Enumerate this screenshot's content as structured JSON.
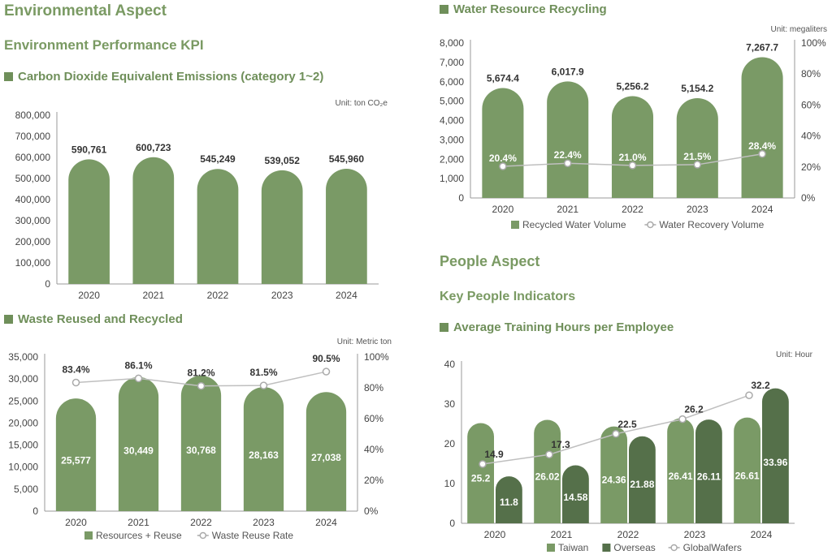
{
  "headings": {
    "env_aspect": "Environmental Aspect",
    "env_kpi": "Environment Performance KPI",
    "co2_title": "Carbon Dioxide Equivalent Emissions (category 1~2)",
    "waste_title": "Waste Reused and Recycled",
    "water_title": "Water Resource Recycling",
    "people_aspect": "People Aspect",
    "people_kpi": "Key People Indicators",
    "training_title": "Average Training Hours per Employee"
  },
  "colors": {
    "bar": "#7a9a66",
    "bar_dark": "#55704a",
    "line": "#bfbfbf",
    "heading": "#7a9a63"
  },
  "chart_data": [
    {
      "id": "co2",
      "type": "bar",
      "unit": "Unit: ton CO₂e",
      "categories": [
        "2020",
        "2021",
        "2022",
        "2023",
        "2024"
      ],
      "series": [
        {
          "values": [
            590761,
            600723,
            545249,
            539052,
            545960
          ],
          "labels": [
            "590,761",
            "600,723",
            "545,249",
            "539,052",
            "545,960"
          ]
        }
      ],
      "ylim": [
        0,
        800000
      ],
      "yticks": [
        "0",
        "100,000",
        "200,000",
        "300,000",
        "400,000",
        "500,000",
        "600,000",
        "700,000",
        "800,000"
      ],
      "grid": false
    },
    {
      "id": "waste",
      "type": "bar",
      "unit": "Unit: Metric ton",
      "categories": [
        "2020",
        "2021",
        "2022",
        "2023",
        "2024"
      ],
      "series": [
        {
          "name": "Resources + Reuse",
          "values": [
            25577,
            30449,
            30768,
            28163,
            27038
          ],
          "labels": [
            "25,577",
            "30,449",
            "30,768",
            "28,163",
            "27,038"
          ]
        },
        {
          "name": "Waste Reuse Rate",
          "type": "line",
          "axis": "right",
          "values": [
            83.4,
            86.1,
            81.2,
            81.5,
            90.5
          ],
          "labels": [
            "83.4%",
            "86.1%",
            "81.2%",
            "81.5%",
            "90.5%"
          ]
        }
      ],
      "ylim": [
        0,
        35000
      ],
      "yticks": [
        "0",
        "5,000",
        "10,000",
        "15,000",
        "20,000",
        "25,000",
        "30,000",
        "35,000"
      ],
      "y2lim": [
        0,
        100
      ],
      "y2ticks": [
        "0%",
        "20%",
        "40%",
        "60%",
        "80%",
        "100%"
      ],
      "legend": "bottom"
    },
    {
      "id": "water",
      "type": "bar",
      "unit": "Unit: megaliters",
      "categories": [
        "2020",
        "2021",
        "2022",
        "2023",
        "2024"
      ],
      "series": [
        {
          "name": "Recycled Water Volume",
          "values": [
            5674.4,
            6017.9,
            5256.2,
            5154.2,
            7267.7
          ],
          "labels": [
            "5,674.4",
            "6,017.9",
            "5,256.2",
            "5,154.2",
            "7,267.7"
          ]
        },
        {
          "name": "Water Recovery Volume",
          "type": "line",
          "axis": "right",
          "values": [
            20.4,
            22.4,
            21.0,
            21.5,
            28.4
          ],
          "labels": [
            "20.4%",
            "22.4%",
            "21.0%",
            "21.5%",
            "28.4%"
          ]
        }
      ],
      "ylim": [
        0,
        8000
      ],
      "yticks": [
        "0",
        "1,000",
        "2,000",
        "3,000",
        "4,000",
        "5,000",
        "6,000",
        "7,000",
        "8,000"
      ],
      "y2lim": [
        0,
        100
      ],
      "y2ticks": [
        "0%",
        "20%",
        "40%",
        "60%",
        "80%",
        "100%"
      ],
      "legend": "bottom"
    },
    {
      "id": "training",
      "type": "bar",
      "unit": "Unit:  Hour",
      "categories": [
        "2020",
        "2021",
        "2022",
        "2023",
        "2024"
      ],
      "series": [
        {
          "name": "Taiwan",
          "values": [
            25.2,
            26.02,
            24.36,
            26.41,
            26.61
          ],
          "labels": [
            "25.2",
            "26.02",
            "24.36",
            "26.41",
            "26.61"
          ]
        },
        {
          "name": "Overseas",
          "values": [
            11.8,
            14.58,
            21.88,
            26.11,
            33.96
          ],
          "labels": [
            "11.8",
            "14.58",
            "21.88",
            "26.11",
            "33.96"
          ]
        },
        {
          "name": "GlobalWafers",
          "type": "line",
          "values": [
            14.9,
            17.3,
            22.5,
            26.2,
            32.2
          ],
          "labels": [
            "14.9",
            "17.3",
            "22.5",
            "26.2",
            "32.2"
          ]
        }
      ],
      "ylim": [
        0,
        40
      ],
      "yticks": [
        "0",
        "10",
        "20",
        "30",
        "40"
      ],
      "legend": "bottom"
    }
  ]
}
